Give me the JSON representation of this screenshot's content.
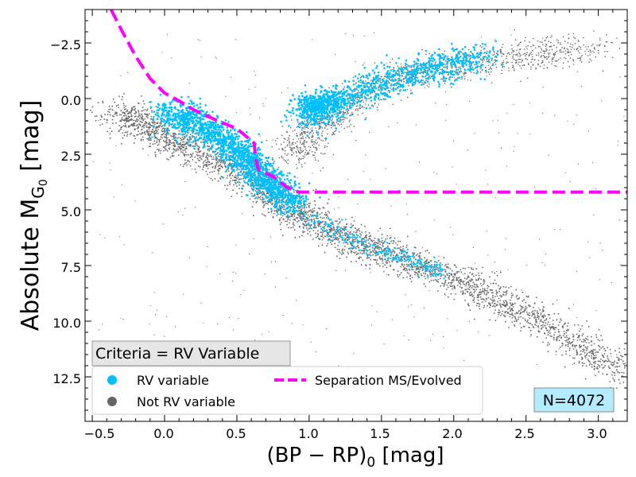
{
  "chart_data": {
    "type": "scatter",
    "xlabel_main": "(BP − RP)",
    "xlabel_sub": "0",
    "xlabel_unit": "[mag]",
    "ylabel_main": "Absolute M",
    "ylabel_sub": "G",
    "ylabel_subsub": "0",
    "ylabel_unit": "[mag]",
    "xlim": [
      -0.55,
      3.2
    ],
    "ylim": [
      14.5,
      -4.0
    ],
    "y_inverted": true,
    "xticks": [
      -0.5,
      0.0,
      0.5,
      1.0,
      1.5,
      2.0,
      2.5,
      3.0
    ],
    "xtick_labels": [
      "−0.5",
      "0.0",
      "0.5",
      "1.0",
      "1.5",
      "2.0",
      "2.5",
      "3.0"
    ],
    "yticks": [
      -2.5,
      0.0,
      2.5,
      5.0,
      7.5,
      10.0,
      12.5
    ],
    "ytick_labels": [
      "−2.5",
      "0.0",
      "2.5",
      "5.0",
      "7.5",
      "10.0",
      "12.5"
    ],
    "grid": false,
    "colors": {
      "rv_variable": "#00bfff",
      "not_rv_variable": "#666666",
      "separation": "#ff00ff",
      "count_box_bg": "#b3ecff",
      "criteria_box_bg": "#e6e6e6"
    },
    "series": [
      {
        "name": "RV variable",
        "kind": "scatter",
        "ridge": [
          [
            0.05,
            0.6
          ],
          [
            0.3,
            1.2
          ],
          [
            0.5,
            2.3
          ],
          [
            0.6,
            3.0
          ],
          [
            0.75,
            3.9
          ],
          [
            0.9,
            4.6
          ],
          [
            1.0,
            0.3
          ],
          [
            1.1,
            0.5
          ],
          [
            1.3,
            0.2
          ],
          [
            1.5,
            -0.7
          ],
          [
            1.7,
            -1.2
          ],
          [
            1.9,
            -1.6
          ],
          [
            2.1,
            -2.0
          ],
          [
            1.2,
            5.9
          ],
          [
            1.6,
            6.9
          ],
          [
            1.9,
            7.6
          ]
        ]
      },
      {
        "name": "Not RV variable",
        "kind": "scatter",
        "ridge": [
          [
            -0.1,
            1.2
          ],
          [
            0.2,
            2.0
          ],
          [
            0.5,
            3.3
          ],
          [
            0.8,
            4.6
          ],
          [
            1.0,
            5.4
          ],
          [
            1.3,
            6.4
          ],
          [
            1.6,
            7.1
          ],
          [
            2.0,
            8.1
          ],
          [
            2.4,
            9.3
          ],
          [
            2.8,
            10.8
          ],
          [
            3.1,
            12.2
          ],
          [
            1.05,
            1.5
          ],
          [
            1.3,
            1.6
          ],
          [
            1.8,
            -0.5
          ],
          [
            2.3,
            -1.3
          ],
          [
            2.8,
            -2.0
          ]
        ]
      },
      {
        "name": "Separation MS/Evolved",
        "kind": "dashed-line",
        "x": [
          -0.37,
          -0.3,
          -0.2,
          -0.1,
          0.0,
          0.1,
          0.2,
          0.35,
          0.5,
          0.62,
          0.63,
          0.65,
          0.75,
          0.85,
          0.93,
          3.2
        ],
        "y": [
          -4.0,
          -3.1,
          -1.9,
          -0.9,
          -0.25,
          0.1,
          0.5,
          0.95,
          1.35,
          2.0,
          2.7,
          3.2,
          3.5,
          4.0,
          4.2,
          4.2
        ]
      }
    ],
    "legend": {
      "placement": "bottom-left",
      "items": [
        {
          "label": "RV variable",
          "marker": "circle",
          "color": "#00bfff"
        },
        {
          "label": "Separation MS/Evolved",
          "marker": "dash",
          "color": "#ff00ff"
        },
        {
          "label": "Not RV variable",
          "marker": "circle",
          "color": "#666666"
        }
      ]
    },
    "annotations": {
      "criteria": "Criteria = RV Variable",
      "count": "N=4072"
    }
  }
}
